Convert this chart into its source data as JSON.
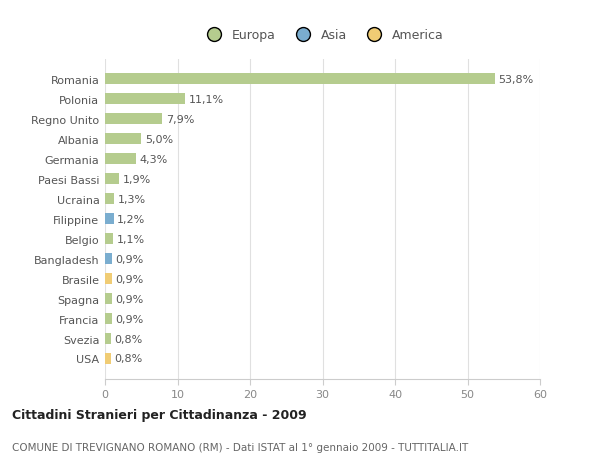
{
  "categories": [
    "Romania",
    "Polonia",
    "Regno Unito",
    "Albania",
    "Germania",
    "Paesi Bassi",
    "Ucraina",
    "Filippine",
    "Belgio",
    "Bangladesh",
    "Brasile",
    "Spagna",
    "Francia",
    "Svezia",
    "USA"
  ],
  "values": [
    53.8,
    11.1,
    7.9,
    5.0,
    4.3,
    1.9,
    1.3,
    1.2,
    1.1,
    0.9,
    0.9,
    0.9,
    0.9,
    0.8,
    0.8
  ],
  "labels": [
    "53,8%",
    "11,1%",
    "7,9%",
    "5,0%",
    "4,3%",
    "1,9%",
    "1,3%",
    "1,2%",
    "1,1%",
    "0,9%",
    "0,9%",
    "0,9%",
    "0,9%",
    "0,8%",
    "0,8%"
  ],
  "bar_colors": [
    "#b5cc8e",
    "#b5cc8e",
    "#b5cc8e",
    "#b5cc8e",
    "#b5cc8e",
    "#b5cc8e",
    "#b5cc8e",
    "#7aadcf",
    "#b5cc8e",
    "#7aadcf",
    "#f0cc74",
    "#b5cc8e",
    "#b5cc8e",
    "#b5cc8e",
    "#f0cc74"
  ],
  "xlim": [
    0,
    60
  ],
  "xticks": [
    0,
    10,
    20,
    30,
    40,
    50,
    60
  ],
  "legend_labels": [
    "Europa",
    "Asia",
    "America"
  ],
  "legend_colors": [
    "#b5cc8e",
    "#7aadcf",
    "#f0cc74"
  ],
  "title1": "Cittadini Stranieri per Cittadinanza - 2009",
  "title2": "COMUNE DI TREVIGNANO ROMANO (RM) - Dati ISTAT al 1° gennaio 2009 - TUTTITALIA.IT",
  "bg_color": "#ffffff",
  "grid_color": "#e0e0e0",
  "bar_height": 0.55,
  "label_fontsize": 8,
  "ytick_fontsize": 8,
  "xtick_fontsize": 8
}
